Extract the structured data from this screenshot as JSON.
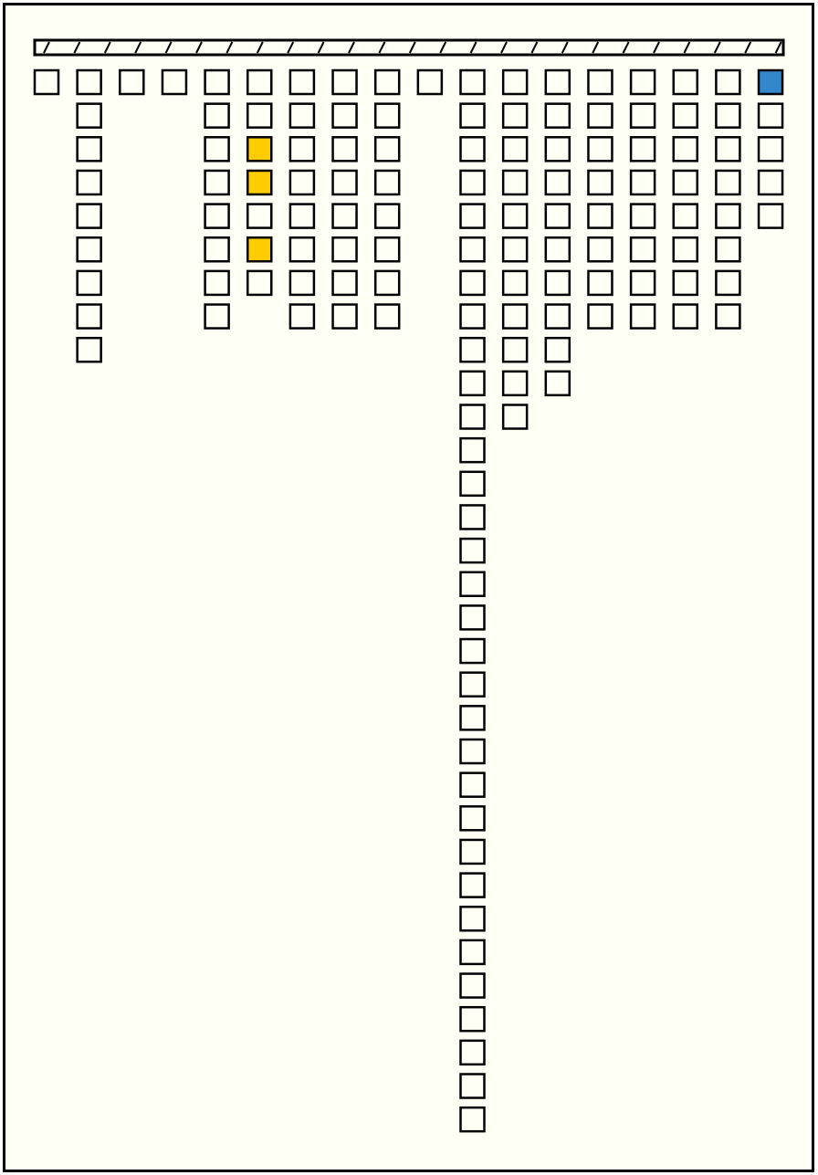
{
  "board": {
    "background": "#fefff5",
    "columns": [
      [
        "#fefff5"
      ],
      [
        "#fefff5",
        "#fefff5",
        "#fefff5",
        "#fefff5",
        "#fefff5",
        "#fefff5",
        "#fefff5",
        "#fefff5",
        "#fefff5"
      ],
      [
        "#fefff5"
      ],
      [
        "#fefff5"
      ],
      [
        "#fefff5",
        "#fefff5",
        "#fefff5",
        "#fefff5",
        "#fefff5",
        "#fefff5",
        "#fefff5",
        "#fefff5"
      ],
      [
        "#fefff5",
        "#fefff5",
        "#ffcc00",
        "#ffcc00",
        "#fefff5",
        "#ffcc00",
        "#fefff5"
      ],
      [
        "#fefff5",
        "#fefff5",
        "#fefff5",
        "#fefff5",
        "#fefff5",
        "#fefff5",
        "#fefff5",
        "#fefff5"
      ],
      [
        "#fefff5",
        "#fefff5",
        "#fefff5",
        "#fefff5",
        "#fefff5",
        "#fefff5",
        "#fefff5",
        "#fefff5"
      ],
      [
        "#fefff5",
        "#fefff5",
        "#fefff5",
        "#fefff5",
        "#fefff5",
        "#fefff5",
        "#fefff5",
        "#fefff5"
      ],
      [
        "#fefff5"
      ],
      [
        "#fefff5",
        "#fefff5",
        "#fefff5",
        "#fefff5",
        "#fefff5",
        "#fefff5",
        "#fefff5",
        "#fefff5",
        "#fefff5",
        "#fefff5",
        "#fefff5",
        "#fefff5",
        "#fefff5",
        "#fefff5",
        "#fefff5",
        "#fefff5",
        "#fefff5",
        "#fefff5",
        "#fefff5",
        "#fefff5",
        "#fefff5",
        "#fefff5",
        "#fefff5",
        "#fefff5",
        "#fefff5",
        "#fefff5",
        "#fefff5",
        "#fefff5",
        "#fefff5",
        "#fefff5",
        "#fefff5",
        "#fefff5"
      ],
      [
        "#fefff5",
        "#fefff5",
        "#fefff5",
        "#fefff5",
        "#fefff5",
        "#fefff5",
        "#fefff5",
        "#fefff5",
        "#fefff5",
        "#fefff5",
        "#fefff5"
      ],
      [
        "#fefff5",
        "#fefff5",
        "#fefff5",
        "#fefff5",
        "#fefff5",
        "#fefff5",
        "#fefff5",
        "#fefff5",
        "#fefff5",
        "#fefff5"
      ],
      [
        "#fefff5",
        "#fefff5",
        "#fefff5",
        "#fefff5",
        "#fefff5",
        "#fefff5",
        "#fefff5",
        "#fefff5"
      ],
      [
        "#fefff5",
        "#fefff5",
        "#fefff5",
        "#fefff5",
        "#fefff5",
        "#fefff5",
        "#fefff5",
        "#fefff5"
      ],
      [
        "#fefff5",
        "#fefff5",
        "#fefff5",
        "#fefff5",
        "#fefff5",
        "#fefff5",
        "#fefff5",
        "#fefff5"
      ],
      [
        "#fefff5",
        "#fefff5",
        "#fefff5",
        "#fefff5",
        "#fefff5",
        "#fefff5",
        "#fefff5",
        "#fefff5"
      ],
      [
        "#3388cc",
        "#fefff5",
        "#fefff5",
        "#fefff5",
        "#fefff5"
      ]
    ]
  }
}
